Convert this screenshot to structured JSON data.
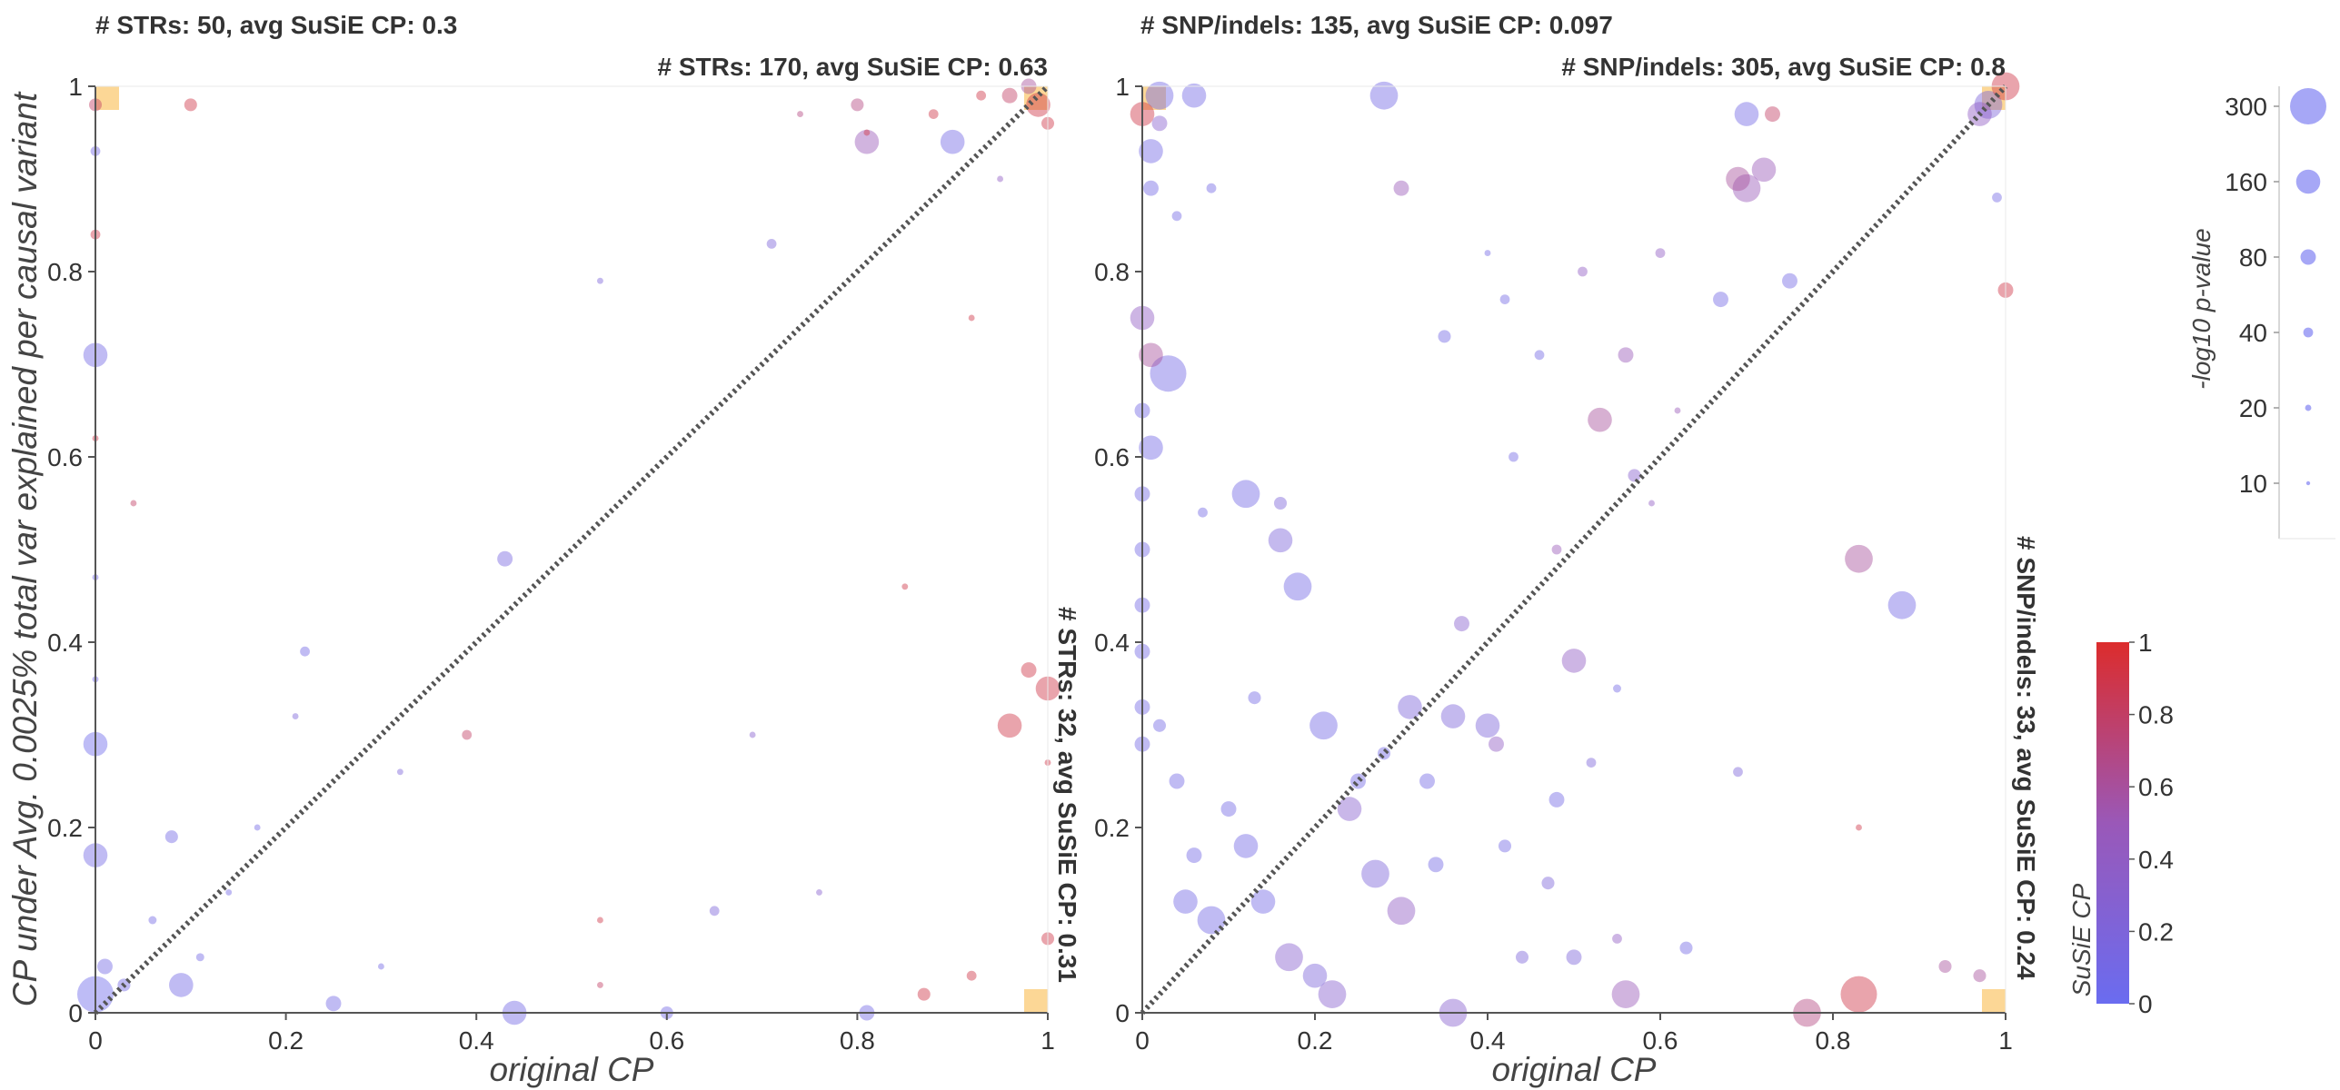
{
  "chart_data": [
    {
      "type": "scatter",
      "panel": "STRs",
      "xlabel": "original CP",
      "ylabel": "CP under Avg. 0.0025% total var explained per causal variant",
      "xlim": [
        0,
        1
      ],
      "ylim": [
        0,
        1
      ],
      "xticks": [
        "0",
        "0.2",
        "0.4",
        "0.6",
        "0.8",
        "1"
      ],
      "yticks": [
        "0",
        "0.2",
        "0.4",
        "0.6",
        "0.8",
        "1"
      ],
      "diagonal": "dotted y = x reference line",
      "annotations": {
        "top_left": "# STRs: 50, avg SuSiE CP: 0.3",
        "top_right": "# STRs: 170, avg SuSiE CP: 0.63",
        "bottom_right": "# STRs: 32, avg SuSiE CP: 0.31"
      },
      "highlight_corners": [
        "top-left",
        "top-right",
        "bottom-right"
      ],
      "points": [
        {
          "x": 0.04,
          "y": 0.55,
          "p": 20,
          "c": 0.8
        },
        {
          "x": 0.0,
          "y": 0.71,
          "p": 160,
          "c": 0.1
        },
        {
          "x": 0.0,
          "y": 0.29,
          "p": 160,
          "c": 0.05
        },
        {
          "x": 0.0,
          "y": 0.17,
          "p": 160,
          "c": 0.1
        },
        {
          "x": 0.0,
          "y": 0.93,
          "p": 40,
          "c": 0.1
        },
        {
          "x": 0.0,
          "y": 0.84,
          "p": 40,
          "c": 0.9
        },
        {
          "x": 0.0,
          "y": 0.02,
          "p": 300,
          "c": 0.05
        },
        {
          "x": 0.01,
          "y": 0.05,
          "p": 80,
          "c": 0.1
        },
        {
          "x": 0.03,
          "y": 0.03,
          "p": 60,
          "c": 0.1
        },
        {
          "x": 0.0,
          "y": 0.47,
          "p": 20,
          "c": 0.1
        },
        {
          "x": 0.0,
          "y": 0.36,
          "p": 20,
          "c": 0.1
        },
        {
          "x": 0.0,
          "y": 0.62,
          "p": 20,
          "c": 0.9
        },
        {
          "x": 0.0,
          "y": 0.98,
          "p": 60,
          "c": 0.8
        },
        {
          "x": 0.09,
          "y": 0.03,
          "p": 160,
          "c": 0.1
        },
        {
          "x": 0.08,
          "y": 0.19,
          "p": 60,
          "c": 0.1
        },
        {
          "x": 0.1,
          "y": 0.98,
          "p": 60,
          "c": 0.9
        },
        {
          "x": 0.21,
          "y": 0.32,
          "p": 20,
          "c": 0.2
        },
        {
          "x": 0.22,
          "y": 0.39,
          "p": 40,
          "c": 0.1
        },
        {
          "x": 0.25,
          "y": 0.01,
          "p": 80,
          "c": 0.1
        },
        {
          "x": 0.32,
          "y": 0.26,
          "p": 20,
          "c": 0.2
        },
        {
          "x": 0.39,
          "y": 0.3,
          "p": 40,
          "c": 0.8
        },
        {
          "x": 0.43,
          "y": 0.49,
          "p": 80,
          "c": 0.15
        },
        {
          "x": 0.44,
          "y": 0.0,
          "p": 160,
          "c": 0.1
        },
        {
          "x": 0.53,
          "y": 0.03,
          "p": 20,
          "c": 0.8
        },
        {
          "x": 0.53,
          "y": 0.1,
          "p": 20,
          "c": 0.9
        },
        {
          "x": 0.6,
          "y": 0.0,
          "p": 60,
          "c": 0.1
        },
        {
          "x": 0.65,
          "y": 0.11,
          "p": 40,
          "c": 0.2
        },
        {
          "x": 0.71,
          "y": 0.83,
          "p": 40,
          "c": 0.2
        },
        {
          "x": 0.74,
          "y": 0.97,
          "p": 20,
          "c": 0.7
        },
        {
          "x": 0.8,
          "y": 0.98,
          "p": 60,
          "c": 0.7
        },
        {
          "x": 0.81,
          "y": 0.95,
          "p": 20,
          "c": 0.9
        },
        {
          "x": 0.81,
          "y": 0.0,
          "p": 80,
          "c": 0.1
        },
        {
          "x": 0.81,
          "y": 0.94,
          "p": 160,
          "c": 0.5
        },
        {
          "x": 0.85,
          "y": 0.46,
          "p": 20,
          "c": 0.9
        },
        {
          "x": 0.87,
          "y": 0.02,
          "p": 60,
          "c": 0.9
        },
        {
          "x": 0.9,
          "y": 0.94,
          "p": 160,
          "c": 0.1
        },
        {
          "x": 0.92,
          "y": 0.75,
          "p": 20,
          "c": 0.9
        },
        {
          "x": 0.92,
          "y": 0.04,
          "p": 40,
          "c": 0.9
        },
        {
          "x": 0.96,
          "y": 0.31,
          "p": 160,
          "c": 0.9
        },
        {
          "x": 0.98,
          "y": 0.37,
          "p": 80,
          "c": 0.9
        },
        {
          "x": 1.0,
          "y": 0.35,
          "p": 160,
          "c": 0.9
        },
        {
          "x": 1.0,
          "y": 0.08,
          "p": 60,
          "c": 0.9
        },
        {
          "x": 1.0,
          "y": 0.27,
          "p": 20,
          "c": 0.9
        },
        {
          "x": 0.96,
          "y": 0.99,
          "p": 80,
          "c": 0.8
        },
        {
          "x": 0.98,
          "y": 1.0,
          "p": 80,
          "c": 0.6
        },
        {
          "x": 1.0,
          "y": 0.96,
          "p": 60,
          "c": 0.9
        },
        {
          "x": 0.99,
          "y": 0.98,
          "p": 160,
          "c": 0.9
        },
        {
          "x": 0.93,
          "y": 0.99,
          "p": 40,
          "c": 0.9
        },
        {
          "x": 0.88,
          "y": 0.97,
          "p": 40,
          "c": 0.9
        },
        {
          "x": 0.95,
          "y": 0.9,
          "p": 20,
          "c": 0.4
        },
        {
          "x": 0.17,
          "y": 0.2,
          "p": 20,
          "c": 0.1
        },
        {
          "x": 0.14,
          "y": 0.13,
          "p": 20,
          "c": 0.1
        },
        {
          "x": 0.11,
          "y": 0.06,
          "p": 30,
          "c": 0.1
        },
        {
          "x": 0.06,
          "y": 0.1,
          "p": 30,
          "c": 0.1
        },
        {
          "x": 0.3,
          "y": 0.05,
          "p": 20,
          "c": 0.1
        },
        {
          "x": 0.76,
          "y": 0.13,
          "p": 20,
          "c": 0.3
        },
        {
          "x": 0.69,
          "y": 0.3,
          "p": 20,
          "c": 0.3
        },
        {
          "x": 0.53,
          "y": 0.79,
          "p": 20,
          "c": 0.2
        }
      ]
    },
    {
      "type": "scatter",
      "panel": "SNP/indels",
      "xlabel": "original CP",
      "xlim": [
        0,
        1
      ],
      "ylim": [
        0,
        1
      ],
      "xticks": [
        "0",
        "0.2",
        "0.4",
        "0.6",
        "0.8",
        "1"
      ],
      "yticks": [
        "0",
        "0.2",
        "0.4",
        "0.6",
        "0.8",
        "1"
      ],
      "diagonal": "dotted y = x reference line",
      "annotations": {
        "top_left": "# SNP/indels: 135, avg SuSiE CP: 0.097",
        "top_right": "# SNP/indels: 305, avg SuSiE CP: 0.8",
        "bottom_right": "# SNP/indels: 33, avg SuSiE CP: 0.24"
      },
      "highlight_corners": [
        "top-left",
        "top-right",
        "bottom-right"
      ],
      "points": [
        {
          "x": 0.0,
          "y": 0.97,
          "p": 160,
          "c": 0.9
        },
        {
          "x": 0.01,
          "y": 0.93,
          "p": 160,
          "c": 0.1
        },
        {
          "x": 0.01,
          "y": 0.89,
          "p": 80,
          "c": 0.1
        },
        {
          "x": 0.0,
          "y": 0.75,
          "p": 160,
          "c": 0.4
        },
        {
          "x": 0.01,
          "y": 0.71,
          "p": 160,
          "c": 0.6
        },
        {
          "x": 0.03,
          "y": 0.69,
          "p": 300,
          "c": 0.1
        },
        {
          "x": 0.0,
          "y": 0.65,
          "p": 80,
          "c": 0.1
        },
        {
          "x": 0.01,
          "y": 0.61,
          "p": 160,
          "c": 0.1
        },
        {
          "x": 0.0,
          "y": 0.56,
          "p": 80,
          "c": 0.1
        },
        {
          "x": 0.0,
          "y": 0.5,
          "p": 80,
          "c": 0.1
        },
        {
          "x": 0.0,
          "y": 0.44,
          "p": 80,
          "c": 0.1
        },
        {
          "x": 0.0,
          "y": 0.39,
          "p": 80,
          "c": 0.1
        },
        {
          "x": 0.0,
          "y": 0.33,
          "p": 80,
          "c": 0.1
        },
        {
          "x": 0.0,
          "y": 0.29,
          "p": 80,
          "c": 0.1
        },
        {
          "x": 0.02,
          "y": 0.96,
          "p": 80,
          "c": 0.3
        },
        {
          "x": 0.04,
          "y": 0.86,
          "p": 40,
          "c": 0.1
        },
        {
          "x": 0.08,
          "y": 0.89,
          "p": 40,
          "c": 0.1
        },
        {
          "x": 0.07,
          "y": 0.54,
          "p": 40,
          "c": 0.1
        },
        {
          "x": 0.12,
          "y": 0.56,
          "p": 200,
          "c": 0.1
        },
        {
          "x": 0.16,
          "y": 0.51,
          "p": 160,
          "c": 0.2
        },
        {
          "x": 0.18,
          "y": 0.46,
          "p": 200,
          "c": 0.1
        },
        {
          "x": 0.21,
          "y": 0.31,
          "p": 200,
          "c": 0.1
        },
        {
          "x": 0.27,
          "y": 0.15,
          "p": 200,
          "c": 0.2
        },
        {
          "x": 0.3,
          "y": 0.11,
          "p": 200,
          "c": 0.4
        },
        {
          "x": 0.3,
          "y": 0.89,
          "p": 80,
          "c": 0.5
        },
        {
          "x": 0.31,
          "y": 0.33,
          "p": 160,
          "c": 0.2
        },
        {
          "x": 0.35,
          "y": 0.73,
          "p": 60,
          "c": 0.1
        },
        {
          "x": 0.4,
          "y": 0.31,
          "p": 160,
          "c": 0.2
        },
        {
          "x": 0.41,
          "y": 0.29,
          "p": 80,
          "c": 0.4
        },
        {
          "x": 0.42,
          "y": 0.77,
          "p": 40,
          "c": 0.1
        },
        {
          "x": 0.43,
          "y": 0.6,
          "p": 40,
          "c": 0.1
        },
        {
          "x": 0.46,
          "y": 0.71,
          "p": 40,
          "c": 0.1
        },
        {
          "x": 0.48,
          "y": 0.5,
          "p": 40,
          "c": 0.5
        },
        {
          "x": 0.5,
          "y": 0.38,
          "p": 160,
          "c": 0.4
        },
        {
          "x": 0.51,
          "y": 0.8,
          "p": 40,
          "c": 0.4
        },
        {
          "x": 0.53,
          "y": 0.64,
          "p": 160,
          "c": 0.6
        },
        {
          "x": 0.56,
          "y": 0.71,
          "p": 80,
          "c": 0.5
        },
        {
          "x": 0.57,
          "y": 0.58,
          "p": 60,
          "c": 0.3
        },
        {
          "x": 0.6,
          "y": 0.82,
          "p": 40,
          "c": 0.4
        },
        {
          "x": 0.67,
          "y": 0.77,
          "p": 80,
          "c": 0.1
        },
        {
          "x": 0.69,
          "y": 0.9,
          "p": 160,
          "c": 0.6
        },
        {
          "x": 0.7,
          "y": 0.89,
          "p": 200,
          "c": 0.5
        },
        {
          "x": 0.72,
          "y": 0.91,
          "p": 160,
          "c": 0.5
        },
        {
          "x": 0.75,
          "y": 0.79,
          "p": 80,
          "c": 0.1
        },
        {
          "x": 0.7,
          "y": 0.97,
          "p": 160,
          "c": 0.1
        },
        {
          "x": 0.73,
          "y": 0.97,
          "p": 80,
          "c": 0.8
        },
        {
          "x": 0.83,
          "y": 0.49,
          "p": 200,
          "c": 0.6
        },
        {
          "x": 0.88,
          "y": 0.44,
          "p": 200,
          "c": 0.1
        },
        {
          "x": 0.69,
          "y": 0.26,
          "p": 40,
          "c": 0.2
        },
        {
          "x": 0.83,
          "y": 0.2,
          "p": 20,
          "c": 0.9
        },
        {
          "x": 0.83,
          "y": 0.02,
          "p": 300,
          "c": 0.9
        },
        {
          "x": 0.77,
          "y": 0.0,
          "p": 200,
          "c": 0.7
        },
        {
          "x": 0.56,
          "y": 0.02,
          "p": 200,
          "c": 0.5
        },
        {
          "x": 0.36,
          "y": 0.0,
          "p": 200,
          "c": 0.3
        },
        {
          "x": 0.22,
          "y": 0.02,
          "p": 200,
          "c": 0.3
        },
        {
          "x": 0.59,
          "y": 0.55,
          "p": 20,
          "c": 0.4
        },
        {
          "x": 0.62,
          "y": 0.65,
          "p": 20,
          "c": 0.5
        },
        {
          "x": 0.93,
          "y": 0.05,
          "p": 60,
          "c": 0.6
        },
        {
          "x": 0.97,
          "y": 0.04,
          "p": 60,
          "c": 0.6
        },
        {
          "x": 0.98,
          "y": 0.98,
          "p": 200,
          "c": 0.2
        },
        {
          "x": 1.0,
          "y": 0.78,
          "p": 80,
          "c": 0.9
        },
        {
          "x": 0.99,
          "y": 0.88,
          "p": 40,
          "c": 0.1
        },
        {
          "x": 1.0,
          "y": 1.0,
          "p": 200,
          "c": 0.9
        },
        {
          "x": 0.97,
          "y": 0.97,
          "p": 160,
          "c": 0.4
        },
        {
          "x": 0.36,
          "y": 0.32,
          "p": 160,
          "c": 0.2
        },
        {
          "x": 0.34,
          "y": 0.16,
          "p": 80,
          "c": 0.1
        },
        {
          "x": 0.16,
          "y": 0.55,
          "p": 60,
          "c": 0.2
        },
        {
          "x": 0.24,
          "y": 0.22,
          "p": 160,
          "c": 0.3
        },
        {
          "x": 0.13,
          "y": 0.34,
          "p": 60,
          "c": 0.1
        },
        {
          "x": 0.02,
          "y": 0.99,
          "p": 200,
          "c": 0.1
        },
        {
          "x": 0.06,
          "y": 0.99,
          "p": 160,
          "c": 0.1
        },
        {
          "x": 0.28,
          "y": 0.99,
          "p": 200,
          "c": 0.1
        },
        {
          "x": 0.4,
          "y": 0.82,
          "p": 20,
          "c": 0.1
        },
        {
          "x": 0.55,
          "y": 0.35,
          "p": 30,
          "c": 0.1
        },
        {
          "x": 0.48,
          "y": 0.23,
          "p": 80,
          "c": 0.1
        },
        {
          "x": 0.42,
          "y": 0.18,
          "p": 60,
          "c": 0.1
        },
        {
          "x": 0.44,
          "y": 0.06,
          "p": 60,
          "c": 0.2
        },
        {
          "x": 0.47,
          "y": 0.14,
          "p": 60,
          "c": 0.2
        },
        {
          "x": 0.63,
          "y": 0.07,
          "p": 60,
          "c": 0.1
        },
        {
          "x": 0.55,
          "y": 0.08,
          "p": 40,
          "c": 0.4
        },
        {
          "x": 0.52,
          "y": 0.27,
          "p": 40,
          "c": 0.2
        },
        {
          "x": 0.5,
          "y": 0.06,
          "p": 80,
          "c": 0.2
        },
        {
          "x": 0.37,
          "y": 0.42,
          "p": 80,
          "c": 0.3
        },
        {
          "x": 0.33,
          "y": 0.25,
          "p": 80,
          "c": 0.1
        },
        {
          "x": 0.25,
          "y": 0.25,
          "p": 80,
          "c": 0.1
        },
        {
          "x": 0.28,
          "y": 0.28,
          "p": 60,
          "c": 0.1
        },
        {
          "x": 0.12,
          "y": 0.18,
          "p": 160,
          "c": 0.1
        },
        {
          "x": 0.1,
          "y": 0.22,
          "p": 80,
          "c": 0.1
        },
        {
          "x": 0.14,
          "y": 0.12,
          "p": 160,
          "c": 0.1
        },
        {
          "x": 0.17,
          "y": 0.06,
          "p": 200,
          "c": 0.3
        },
        {
          "x": 0.2,
          "y": 0.04,
          "p": 160,
          "c": 0.2
        },
        {
          "x": 0.05,
          "y": 0.12,
          "p": 160,
          "c": 0.1
        },
        {
          "x": 0.08,
          "y": 0.1,
          "p": 200,
          "c": 0.1
        },
        {
          "x": 0.06,
          "y": 0.17,
          "p": 80,
          "c": 0.1
        },
        {
          "x": 0.04,
          "y": 0.25,
          "p": 80,
          "c": 0.1
        },
        {
          "x": 0.02,
          "y": 0.31,
          "p": 60,
          "c": 0.1
        }
      ]
    }
  ],
  "size_legend": {
    "title": "-log10 p-value",
    "levels": [
      {
        "label": "300",
        "value": 300
      },
      {
        "label": "160",
        "value": 160
      },
      {
        "label": "80",
        "value": 80
      },
      {
        "label": "40",
        "value": 40
      },
      {
        "label": "20",
        "value": 20
      },
      {
        "label": "10",
        "value": 10
      }
    ]
  },
  "color_legend": {
    "title": "SuSiE CP",
    "ticks": [
      "0",
      "0.2",
      "0.4",
      "0.6",
      "0.8",
      "1"
    ],
    "colors": {
      "low": "#6a6cf0",
      "mid": "#9a58b8",
      "high": "#dc2c2c"
    }
  },
  "colors": {
    "diagonal": "#555555",
    "highlight": "#fbc15d",
    "axis": "#555555"
  }
}
